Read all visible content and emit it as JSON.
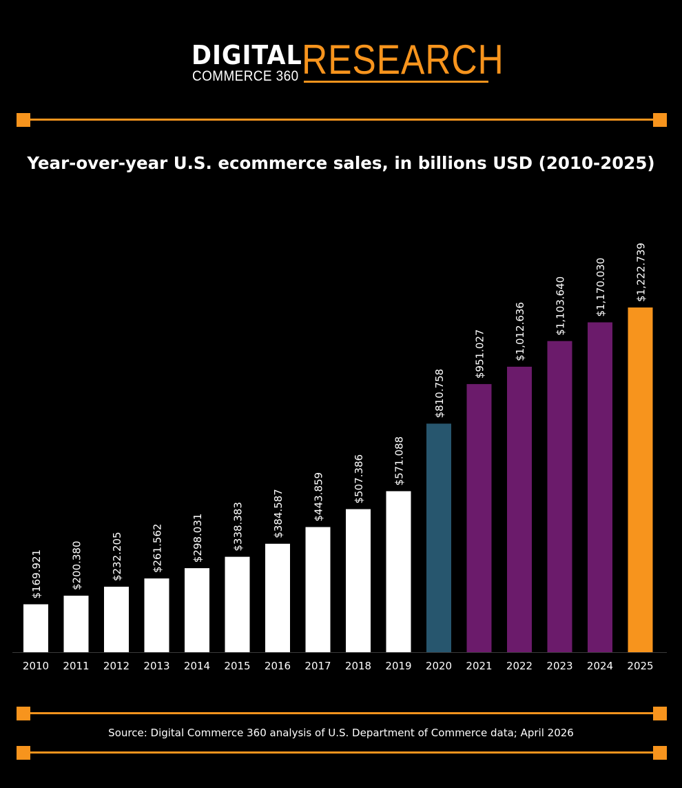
{
  "logo": {
    "digital": "DIGITAL",
    "commerce": "COMMERCE 360",
    "research": "RESEARCH"
  },
  "colors": {
    "background": "#000000",
    "accent_orange": "#f7941d",
    "bar_default": "#ffffff",
    "bar_2020": "#27566e",
    "bar_2021_2024": "#6b1b6b",
    "bar_2025": "#f7941d"
  },
  "chart_data": {
    "type": "bar",
    "title": "Year-over-year U.S. ecommerce sales, in billions USD (2010-2025)",
    "xlabel": "",
    "ylabel": "",
    "ylim": [
      0,
      1222.739
    ],
    "grid": false,
    "categories": [
      "2010",
      "2011",
      "2012",
      "2013",
      "2014",
      "2015",
      "2016",
      "2017",
      "2018",
      "2019",
      "2020",
      "2021",
      "2022",
      "2023",
      "2024",
      "2025"
    ],
    "values": [
      169.921,
      200.38,
      232.205,
      261.562,
      298.031,
      338.383,
      384.587,
      443.859,
      507.386,
      571.088,
      810.758,
      951.027,
      1012.636,
      1103.64,
      1170.03,
      1222.739
    ],
    "value_labels": [
      "$169.921",
      "$200.380",
      "$232.205",
      "$261.562",
      "$298.031",
      "$338.383",
      "$384.587",
      "$443.859",
      "$507.386",
      "$571.088",
      "$810.758",
      "$951.027",
      "$1,012.636",
      "$1,103.640",
      "$1,170.030",
      "$1,222.739"
    ],
    "bar_colors": [
      "#ffffff",
      "#ffffff",
      "#ffffff",
      "#ffffff",
      "#ffffff",
      "#ffffff",
      "#ffffff",
      "#ffffff",
      "#ffffff",
      "#ffffff",
      "#27566e",
      "#6b1b6b",
      "#6b1b6b",
      "#6b1b6b",
      "#6b1b6b",
      "#f7941d"
    ]
  },
  "source": "Source: Digital Commerce 360 analysis of U.S. Department of Commerce data; April 2026"
}
